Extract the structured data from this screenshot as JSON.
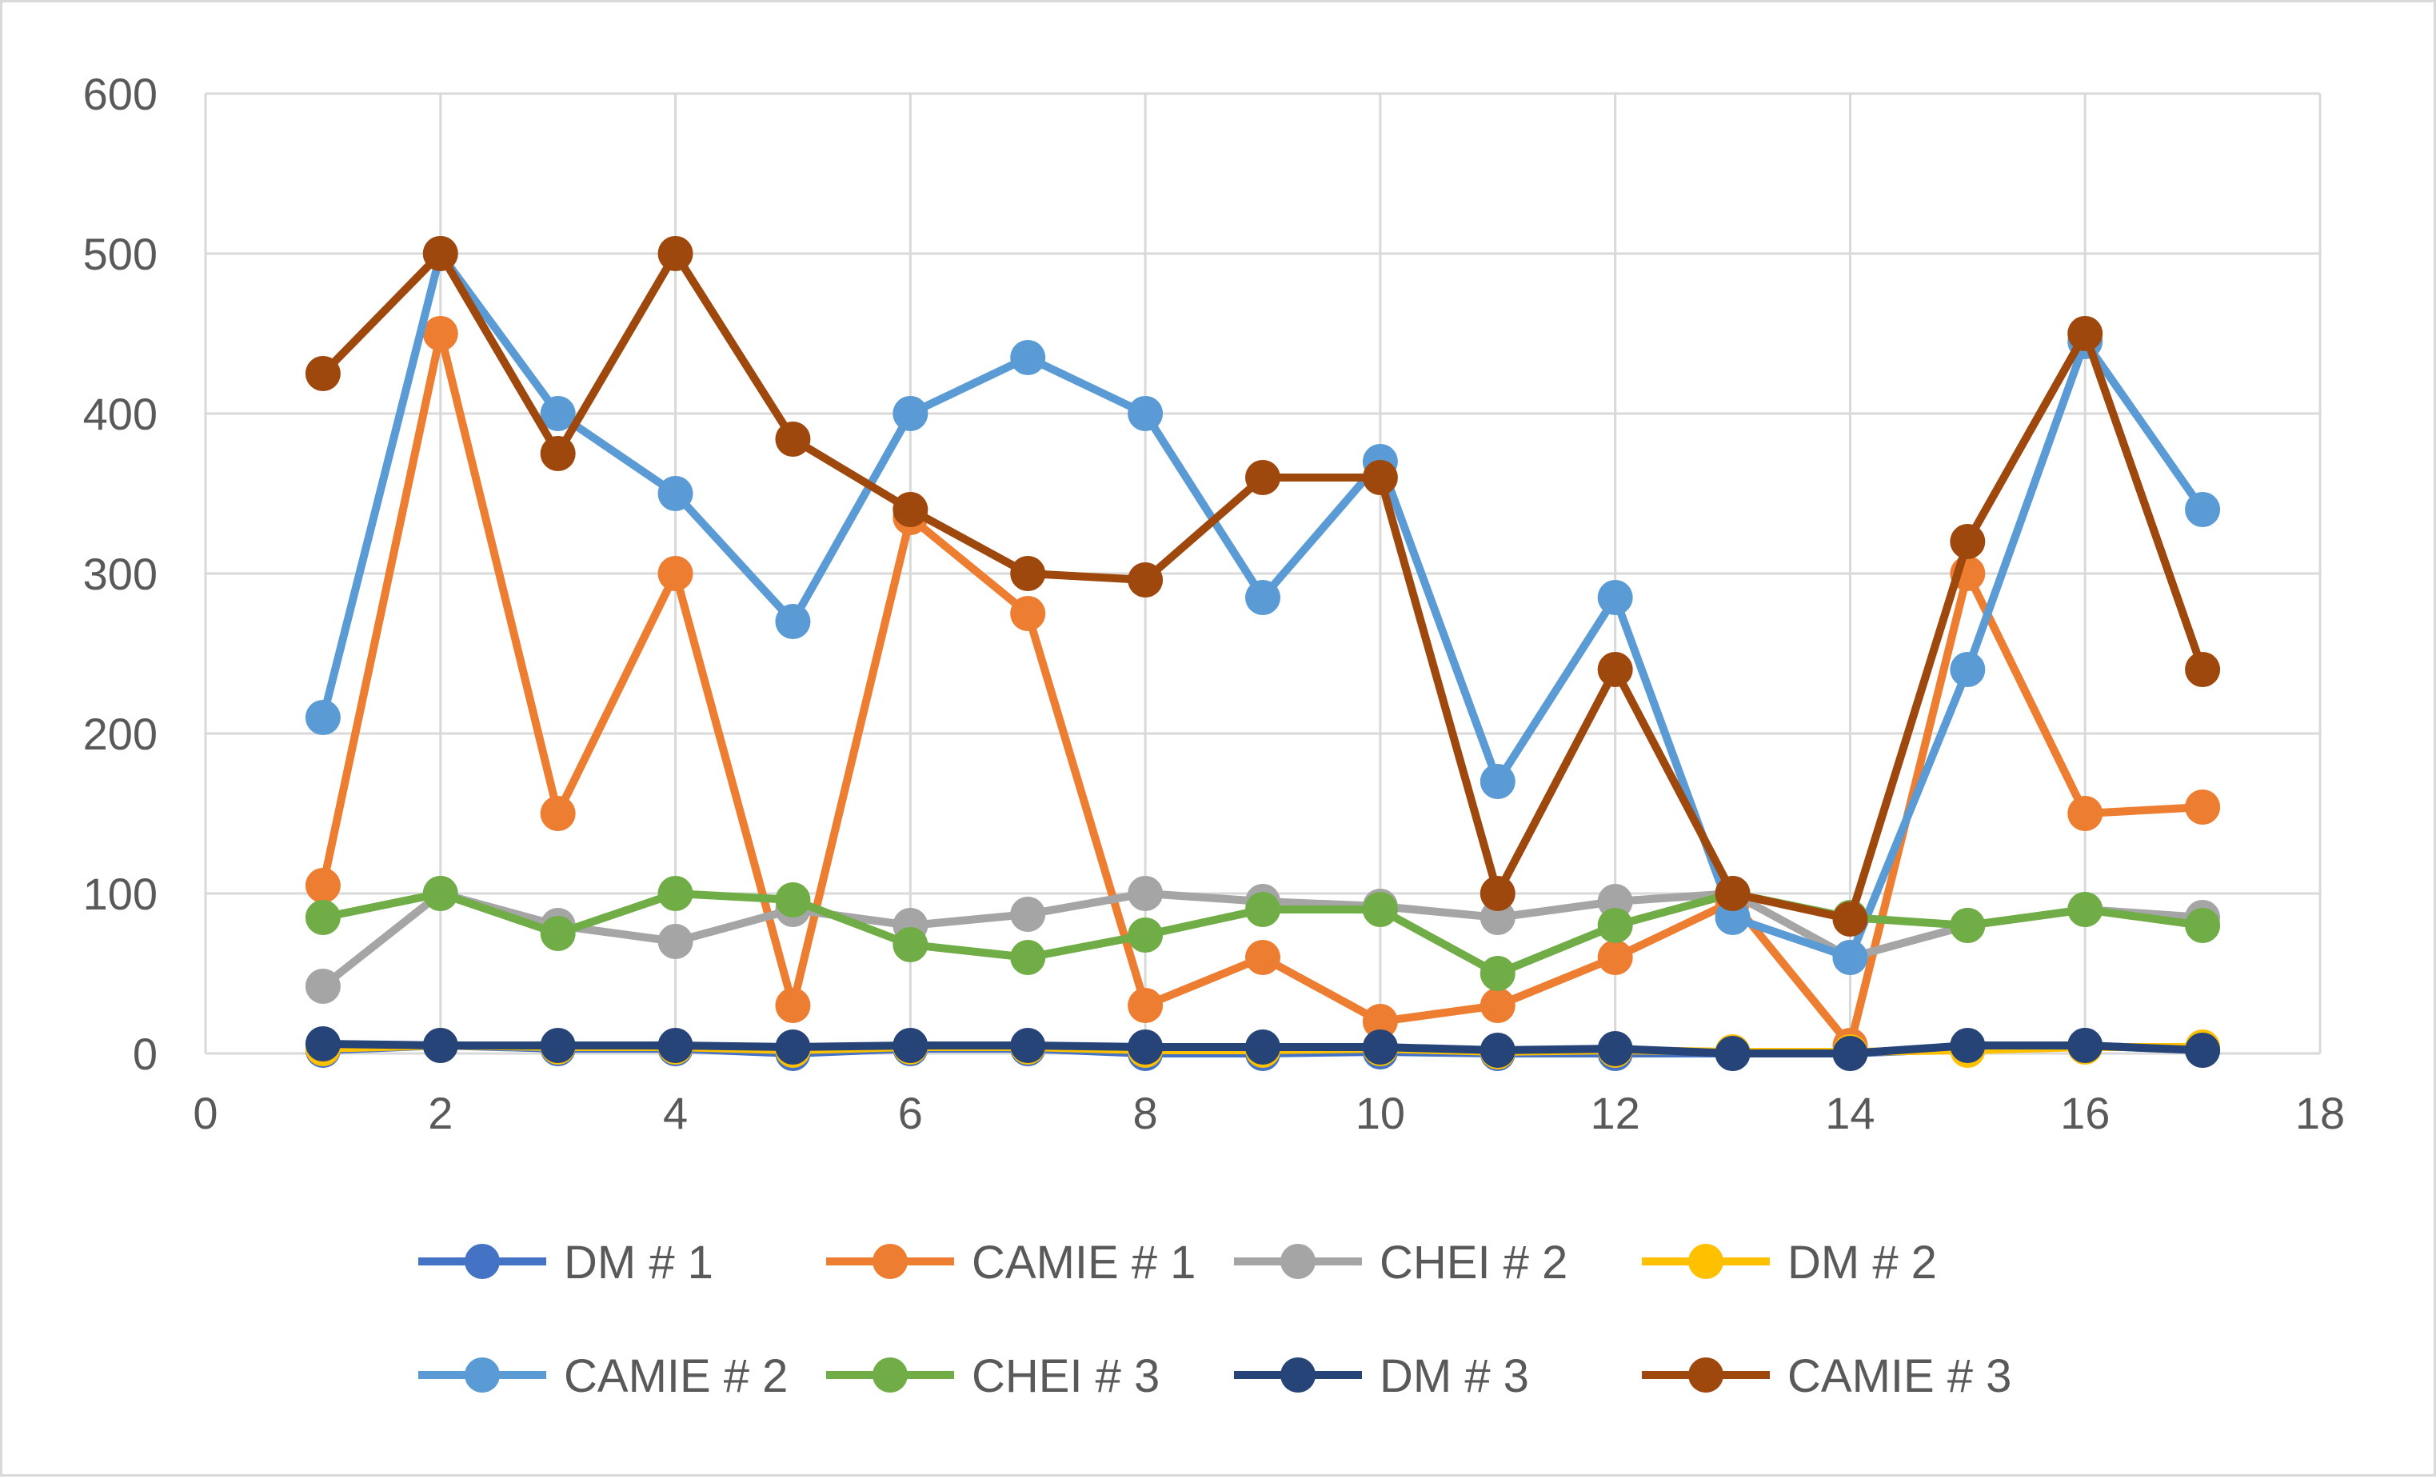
{
  "chart_data": {
    "type": "line",
    "title": "",
    "xlabel": "",
    "ylabel": "",
    "xlim": [
      0,
      18
    ],
    "ylim": [
      0,
      600
    ],
    "x_ticks": [
      "0",
      "2",
      "4",
      "6",
      "8",
      "10",
      "12",
      "14",
      "16",
      "18"
    ],
    "y_ticks": [
      "0",
      "100",
      "200",
      "300",
      "400",
      "500",
      "600"
    ],
    "grid": true,
    "legend_position": "bottom",
    "x": [
      1,
      2,
      3,
      4,
      5,
      6,
      7,
      8,
      9,
      10,
      11,
      12,
      13,
      14,
      15,
      16,
      17
    ],
    "series": [
      {
        "name": "DM # 1",
        "color": "#4472c4",
        "values": [
          2,
          5,
          3,
          3,
          0,
          3,
          3,
          0,
          0,
          1,
          0,
          0,
          0,
          0,
          3,
          5,
          2
        ]
      },
      {
        "name": "CAMIE # 1",
        "color": "#ed7d31",
        "values": [
          105,
          450,
          150,
          300,
          30,
          335,
          275,
          30,
          60,
          20,
          30,
          60,
          95,
          5,
          300,
          150,
          154
        ]
      },
      {
        "name": "CHEI # 2",
        "color": "#a5a5a5",
        "values": [
          42,
          100,
          80,
          70,
          90,
          80,
          87,
          100,
          95,
          92,
          85,
          95,
          100,
          60,
          80,
          90,
          85
        ]
      },
      {
        "name": "DM # 2",
        "color": "#ffc000",
        "values": [
          3,
          5,
          4,
          4,
          2,
          4,
          4,
          2,
          2,
          3,
          1,
          2,
          1,
          1,
          2,
          4,
          4
        ]
      },
      {
        "name": "CAMIE # 2",
        "color": "#5b9bd5",
        "values": [
          210,
          500,
          400,
          350,
          270,
          400,
          435,
          400,
          285,
          370,
          170,
          285,
          85,
          60,
          240,
          445,
          340
        ]
      },
      {
        "name": "CHEI # 3",
        "color": "#70ad47",
        "values": [
          85,
          100,
          75,
          100,
          96,
          68,
          60,
          74,
          90,
          90,
          50,
          80,
          100,
          85,
          80,
          90,
          80
        ]
      },
      {
        "name": "DM # 3",
        "color": "#264478",
        "values": [
          6,
          5,
          5,
          5,
          4,
          5,
          5,
          4,
          4,
          4,
          2,
          3,
          0,
          0,
          5,
          5,
          2
        ]
      },
      {
        "name": "CAMIE # 3",
        "color": "#9e480e",
        "values": [
          425,
          500,
          375,
          500,
          384,
          340,
          300,
          296,
          360,
          360,
          100,
          240,
          100,
          84,
          320,
          450,
          240
        ]
      }
    ]
  }
}
